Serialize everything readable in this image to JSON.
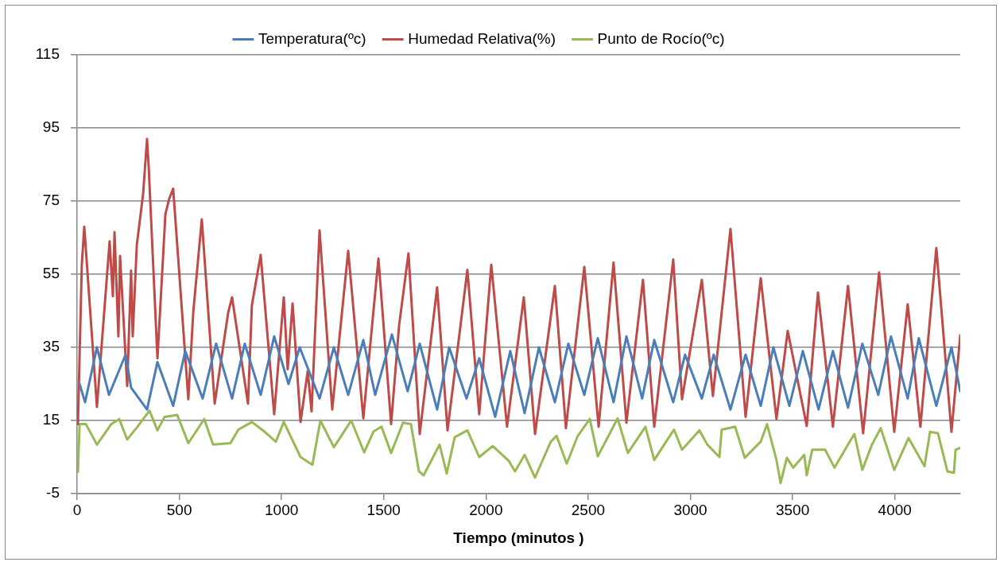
{
  "chart_data": {
    "type": "line",
    "xlabel": "Tiempo (minutos )",
    "xlim": [
      0,
      4320
    ],
    "xticks": [
      0,
      500,
      1000,
      1500,
      2000,
      2500,
      3000,
      3500,
      4000
    ],
    "ylim": [
      -5,
      115
    ],
    "yticks": [
      -5,
      15,
      35,
      55,
      75,
      95,
      115
    ],
    "grid": "y",
    "legend": "top",
    "series": [
      {
        "name": "Temperatura(ºc)",
        "color": "#4a7ebb",
        "x": [
          12,
          39,
          97,
          156,
          237,
          264,
          342,
          393,
          470,
          529,
          614,
          680,
          758,
          820,
          898,
          964,
          1034,
          1089,
          1186,
          1256,
          1326,
          1400,
          1458,
          1540,
          1617,
          1676,
          1761,
          1820,
          1905,
          1967,
          2045,
          2119,
          2189,
          2259,
          2337,
          2403,
          2481,
          2547,
          2624,
          2687,
          2764,
          2823,
          2916,
          2974,
          3056,
          3114,
          3196,
          3270,
          3344,
          3406,
          3484,
          3550,
          3627,
          3697,
          3771,
          3841,
          3919,
          3981,
          4063,
          4117,
          4203,
          4277,
          4320
        ],
        "values": [
          25,
          20,
          35,
          22,
          33,
          24,
          18,
          31,
          19,
          34,
          21,
          36,
          21,
          36,
          22,
          38,
          25,
          35,
          21,
          35,
          22,
          37,
          22,
          38.5,
          23,
          36,
          18,
          35,
          21,
          32,
          16,
          34,
          17,
          35,
          20,
          36,
          22,
          37.5,
          20,
          38,
          21,
          37,
          20,
          33,
          21,
          33,
          18,
          33,
          19,
          35,
          19,
          34,
          18,
          34,
          18.5,
          36,
          22,
          38,
          21,
          37.5,
          19,
          35,
          23
        ]
      },
      {
        "name": "Humedad Relativa(%)",
        "color": "#be4b48",
        "x": [
          4,
          23,
          35,
          97,
          159,
          175,
          183,
          202,
          210,
          245,
          264,
          272,
          292,
          323,
          342,
          350,
          393,
          432,
          451,
          470,
          544,
          568,
          595,
          610,
          673,
          739,
          758,
          836,
          855,
          898,
          964,
          1011,
          1030,
          1054,
          1093,
          1128,
          1147,
          1186,
          1248,
          1326,
          1400,
          1474,
          1536,
          1575,
          1621,
          1676,
          1761,
          1812,
          1909,
          1967,
          2026,
          2103,
          2185,
          2240,
          2337,
          2391,
          2481,
          2551,
          2624,
          2687,
          2768,
          2823,
          2916,
          2959,
          3056,
          3110,
          3196,
          3270,
          3344,
          3421,
          3476,
          3569,
          3624,
          3697,
          3771,
          3845,
          3923,
          3997,
          4063,
          4125,
          4203,
          4277,
          4320
        ],
        "values": [
          14,
          57.6,
          68,
          18.7,
          64,
          49,
          66.5,
          38,
          60,
          24.4,
          56,
          38,
          63,
          77,
          92,
          84.6,
          32,
          71.5,
          75.7,
          78.4,
          20.8,
          44.5,
          61,
          70,
          19.6,
          44.5,
          48.7,
          19.6,
          46.6,
          60.3,
          16.7,
          48.7,
          29,
          47,
          14.6,
          28.5,
          17.5,
          67,
          18,
          61.4,
          15.6,
          59.3,
          14,
          41,
          60.7,
          11.3,
          51.4,
          12.3,
          56.2,
          16.7,
          57.6,
          13.3,
          48.7,
          11.3,
          51.8,
          12.9,
          57,
          13.3,
          58.2,
          14.4,
          53.5,
          13.3,
          59,
          20.8,
          53.5,
          21.7,
          67.4,
          16,
          53.9,
          15.4,
          39.5,
          13.5,
          50,
          13.3,
          51.8,
          11.5,
          55.5,
          11.9,
          46.8,
          13.3,
          62.2,
          11.9,
          38.3
        ]
      },
      {
        "name": "Punto de Rocío(ºc)",
        "color": "#98b954",
        "x": [
          4,
          12,
          43,
          97,
          167,
          206,
          245,
          295,
          354,
          393,
          428,
          490,
          544,
          622,
          665,
          750,
          789,
          855,
          918,
          972,
          1011,
          1093,
          1151,
          1190,
          1256,
          1341,
          1404,
          1450,
          1489,
          1536,
          1594,
          1633,
          1672,
          1695,
          1773,
          1808,
          1847,
          1909,
          1967,
          2033,
          2111,
          2142,
          2189,
          2240,
          2317,
          2345,
          2395,
          2449,
          2508,
          2547,
          2644,
          2694,
          2780,
          2823,
          2881,
          2920,
          2959,
          3044,
          3083,
          3142,
          3153,
          3219,
          3266,
          3344,
          3375,
          3421,
          3441,
          3472,
          3503,
          3557,
          3569,
          3596,
          3659,
          3705,
          3771,
          3802,
          3841,
          3888,
          3931,
          3997,
          4067,
          4145,
          4172,
          4211,
          4257,
          4289,
          4297,
          4320
        ],
        "values": [
          1,
          14,
          14,
          8.4,
          14,
          15.4,
          9.8,
          13.3,
          17.7,
          12.3,
          16,
          16.5,
          8.8,
          15.4,
          8.4,
          8.8,
          12.5,
          14.6,
          11.9,
          9.2,
          14.6,
          5,
          2.9,
          15,
          7.7,
          15,
          6.3,
          12,
          13.3,
          6.1,
          14.4,
          14,
          1.1,
          0,
          8.4,
          0.5,
          10.4,
          12.3,
          5,
          8,
          4,
          1.1,
          5.6,
          -0.6,
          9.2,
          10.8,
          3.2,
          10.8,
          15.4,
          5.2,
          15.6,
          6.1,
          13.3,
          4.2,
          9.2,
          12.5,
          7,
          12.3,
          8.4,
          5,
          12.5,
          13.3,
          4.8,
          9.2,
          14,
          4.2,
          -2.1,
          4.8,
          2.1,
          5.6,
          0,
          7,
          7,
          2.1,
          8.4,
          11.3,
          1.5,
          8.4,
          12.9,
          1.5,
          10.2,
          2.5,
          11.9,
          11.5,
          1.1,
          0.7,
          7,
          7.5
        ]
      }
    ]
  }
}
